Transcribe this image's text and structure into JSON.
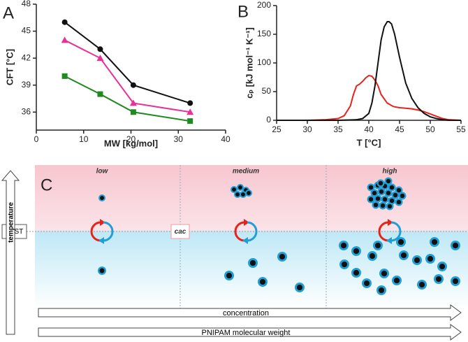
{
  "chart_data": [
    {
      "type": "line",
      "panel_label": "A",
      "x_label": "MW [kg/mol]",
      "y_label": "CFT [°C]",
      "x": [
        6,
        13.5,
        20.5,
        32.5
      ],
      "series": [
        {
          "color": "#111111",
          "marker": "circle",
          "values": [
            46,
            43,
            39,
            37
          ]
        },
        {
          "color": "#e8309a",
          "marker": "triangle",
          "values": [
            44,
            42,
            37,
            36
          ]
        },
        {
          "color": "#1f8a1f",
          "marker": "square",
          "values": [
            40,
            38,
            36,
            35
          ]
        }
      ],
      "xlim": [
        0,
        40
      ],
      "xticks": [
        0,
        10,
        20,
        30,
        40
      ],
      "ylim": [
        34,
        48
      ],
      "yticks": [
        36,
        39,
        42,
        45,
        48
      ]
    },
    {
      "type": "line",
      "panel_label": "B",
      "x_label": "T [°C]",
      "y_label": "cₚ [kJ mol⁻¹ K⁻¹]",
      "series": [
        {
          "color": "#e8221a",
          "marker": "none",
          "x": [
            25,
            30,
            33,
            35,
            36,
            37,
            37.5,
            38,
            38.5,
            39,
            39.5,
            40,
            40.5,
            41,
            41.5,
            42,
            43,
            44,
            45,
            46,
            47,
            48,
            49,
            50,
            51,
            52,
            53,
            55
          ],
          "values": [
            0,
            0,
            1,
            3,
            8,
            25,
            45,
            60,
            63,
            68,
            74,
            78,
            77,
            70,
            60,
            45,
            30,
            24,
            22,
            21,
            20,
            18,
            15,
            11,
            7,
            3,
            1,
            0
          ]
        },
        {
          "color": "#111111",
          "marker": "none",
          "x": [
            25,
            30,
            35,
            38,
            39,
            40,
            40.5,
            41,
            41.5,
            42,
            42.5,
            43,
            43.3,
            43.7,
            44.2,
            45,
            46,
            47,
            48,
            49,
            50,
            51,
            52,
            53,
            55
          ],
          "values": [
            0,
            0,
            0,
            1,
            3,
            12,
            30,
            60,
            100,
            140,
            163,
            172,
            172,
            168,
            150,
            110,
            65,
            38,
            22,
            12,
            6,
            3,
            1,
            0,
            0
          ]
        }
      ],
      "xlim": [
        25,
        55
      ],
      "xticks": [
        25,
        30,
        35,
        40,
        45,
        50,
        55
      ],
      "ylim": [
        0,
        200
      ],
      "yticks": [
        0,
        50,
        100,
        150,
        200
      ]
    }
  ],
  "diagram": {
    "panel_label": "C",
    "columns": [
      "low",
      "medium",
      "high"
    ],
    "lcst": "LCST",
    "cac": "cac",
    "temperature": "temperature",
    "concentration": "concentration",
    "molecular_weight": "PNIPAM molecular weight"
  }
}
